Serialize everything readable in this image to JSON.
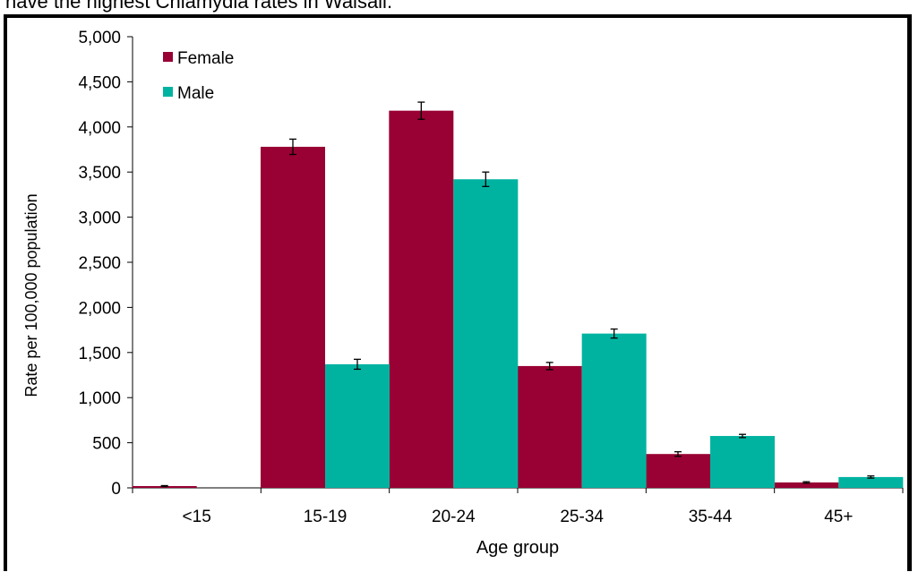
{
  "caption": "have the highest Chlamydia rates in Walsall.",
  "colors": {
    "female": "#990033",
    "male": "#00b3a1",
    "axis": "#000000"
  },
  "chart_data": {
    "type": "bar",
    "title": "",
    "xlabel": "Age group",
    "ylabel": "Rate per 100,000 population",
    "ylim": [
      0,
      5000
    ],
    "yticks": [
      0,
      500,
      1000,
      1500,
      2000,
      2500,
      3000,
      3500,
      4000,
      4500,
      5000
    ],
    "ytick_labels": [
      "0",
      "500",
      "1,000",
      "1,500",
      "2,000",
      "2,500",
      "3,000",
      "3,500",
      "4,000",
      "4,500",
      "5,000"
    ],
    "grid": false,
    "legend_position": "top-left",
    "categories": [
      "<15",
      "15-19",
      "20-24",
      "25-34",
      "35-44",
      "45+"
    ],
    "series": [
      {
        "name": "Female",
        "values": [
          20,
          3780,
          4180,
          1350,
          375,
          60
        ],
        "error": [
          5,
          85,
          95,
          40,
          25,
          8
        ]
      },
      {
        "name": "Male",
        "values": [
          0,
          1370,
          3420,
          1710,
          575,
          120
        ],
        "error": [
          0,
          55,
          80,
          50,
          18,
          12
        ]
      }
    ]
  }
}
